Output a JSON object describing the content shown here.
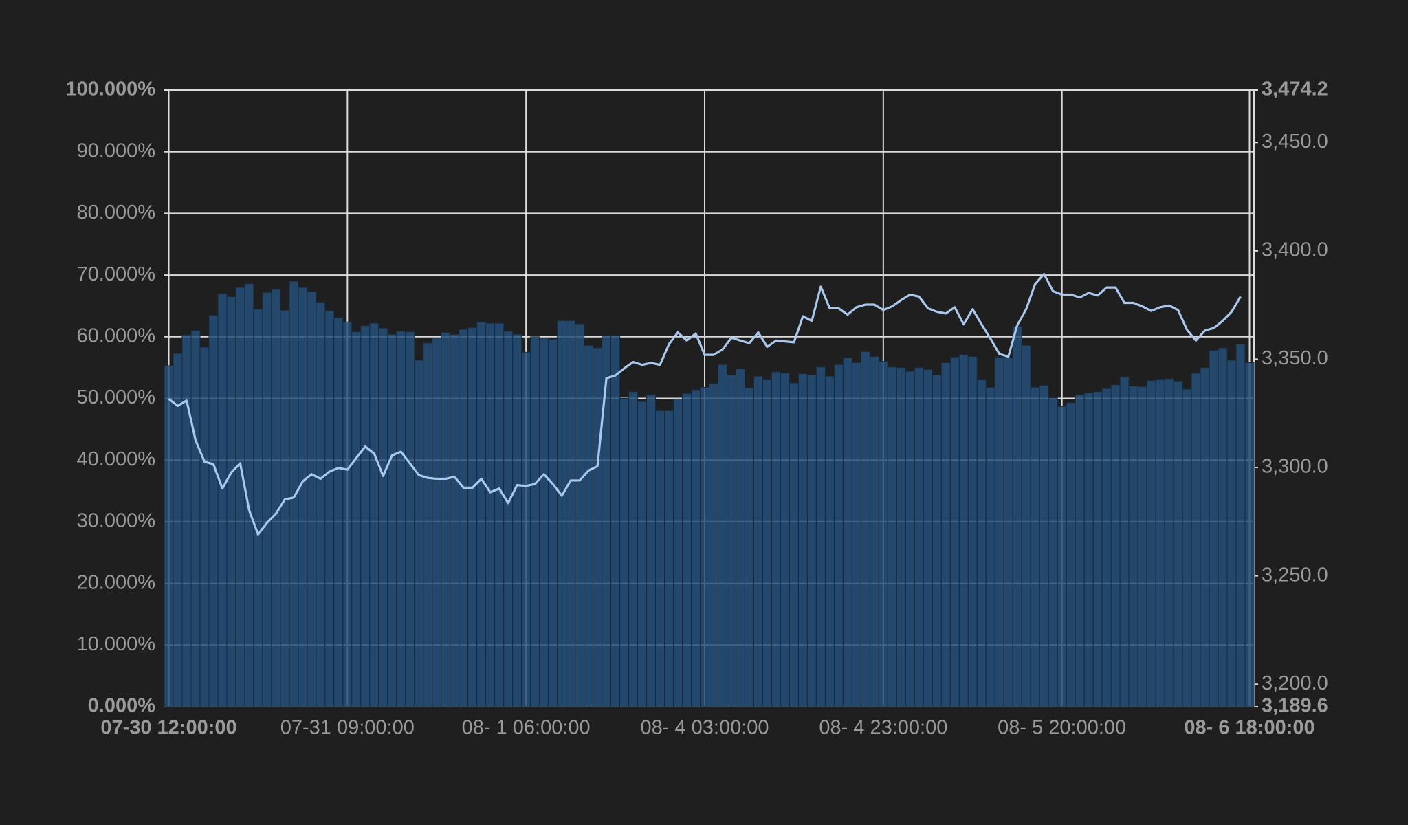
{
  "chart_data": {
    "type": "bar",
    "categories": [
      "07-30 12:00:00",
      null,
      null,
      null,
      null,
      null,
      null,
      null,
      null,
      null,
      null,
      null,
      null,
      null,
      null,
      null,
      null,
      null,
      null,
      null,
      "07-31 09:00:00",
      null,
      null,
      null,
      null,
      null,
      null,
      null,
      null,
      null,
      null,
      null,
      null,
      null,
      null,
      null,
      null,
      null,
      null,
      null,
      "08- 1 06:00:00",
      null,
      null,
      null,
      null,
      null,
      null,
      null,
      null,
      null,
      null,
      null,
      null,
      null,
      null,
      null,
      null,
      null,
      null,
      null,
      "08- 4 03:00:00",
      null,
      null,
      null,
      null,
      null,
      null,
      null,
      null,
      null,
      null,
      null,
      null,
      null,
      null,
      null,
      null,
      null,
      null,
      null,
      "08- 4 23:00:00",
      null,
      null,
      null,
      null,
      null,
      null,
      null,
      null,
      null,
      null,
      null,
      null,
      null,
      null,
      null,
      null,
      null,
      null,
      null,
      "08- 5 20:00:00",
      null,
      null,
      null,
      null,
      null,
      null,
      null,
      null,
      null,
      null,
      null,
      null,
      null,
      null,
      null,
      null,
      null,
      null,
      null,
      null,
      "08- 6 18:00:00"
    ],
    "series": [
      {
        "type": "bar",
        "color": "#26507a",
        "values": [
          55.3,
          57.3,
          60.3,
          61,
          58.3,
          63.5,
          67,
          66.5,
          68,
          68.6,
          64.5,
          67.2,
          67.7,
          64.3,
          69,
          68,
          67.3,
          65.6,
          64.2,
          63.1,
          62.4,
          60.8,
          61.8,
          62.2,
          61.4,
          60.4,
          60.9,
          60.8,
          56.2,
          59,
          59.8,
          60.7,
          60.4,
          61.2,
          61.5,
          62.4,
          62.2,
          62.2,
          60.9,
          60.4,
          57.5,
          60,
          59.8,
          59.6,
          62.6,
          62.6,
          62.1,
          58.6,
          58.2,
          60.2,
          60.2,
          50,
          51.1,
          49.5,
          50.6,
          48,
          48,
          49.9,
          50.8,
          51.4,
          51.8,
          52.4,
          55.5,
          53.8,
          54.8,
          51.7,
          53.6,
          53.1,
          54.3,
          54.1,
          52.5,
          54,
          53.8,
          55.1,
          53.6,
          55.5,
          56.6,
          55.8,
          57.6,
          56.8,
          56,
          55.1,
          55,
          54.4,
          55,
          54.7,
          53.8,
          55.8,
          56.7,
          57.1,
          56.8,
          53.1,
          51.8,
          56.7,
          56.6,
          61.7,
          58.6,
          51.8,
          52.1,
          50.1,
          48.7,
          49.3,
          50.6,
          50.9,
          51.1,
          51.6,
          52.2,
          53.5,
          52,
          51.9,
          52.9,
          53.1,
          53.2,
          52.8,
          51.5,
          54.1,
          55,
          57.8,
          58.2,
          56.2,
          58.8,
          55.8
        ]
      },
      {
        "type": "line",
        "axis": "y2",
        "color": "#aac8ee",
        "values": [
          3331.7,
          3328.4,
          3330.9,
          3312.6,
          3302.7,
          3301.5,
          3290.3,
          3297.7,
          3301.9,
          3280.3,
          3269.1,
          3274.5,
          3278.7,
          3285.3,
          3286.1,
          3293.6,
          3296.9,
          3294.8,
          3298.1,
          3299.8,
          3299.0,
          3304.4,
          3309.7,
          3306.4,
          3296.1,
          3305.6,
          3307.3,
          3301.9,
          3296.5,
          3295.2,
          3294.8,
          3294.8,
          3295.7,
          3290.7,
          3290.7,
          3294.8,
          3288.6,
          3290.3,
          3283.6,
          3291.9,
          3291.5,
          3292.4,
          3296.9,
          3292.4,
          3287.0,
          3294.0,
          3294.0,
          3298.6,
          3300.6,
          3341.2,
          3342.5,
          3345.8,
          3348.7,
          3347.4,
          3348.3,
          3347.4,
          3356.9,
          3362.4,
          3358.6,
          3361.9,
          3352.0,
          3352.0,
          3354.5,
          3359.9,
          3358.6,
          3357.4,
          3362.4,
          3355.7,
          3358.6,
          3358.2,
          3357.8,
          3369.8,
          3367.7,
          3383.5,
          3373.5,
          3373.5,
          3370.6,
          3374.0,
          3375.2,
          3375.2,
          3372.7,
          3374.4,
          3377.3,
          3379.8,
          3378.9,
          3373.5,
          3371.9,
          3371.1,
          3374.0,
          3366.1,
          3373.1,
          3366.1,
          3359.5,
          3352.4,
          3351.2,
          3365.7,
          3373.1,
          3384.7,
          3389.3,
          3381.4,
          3379.8,
          3379.8,
          3378.5,
          3380.6,
          3379.4,
          3383.1,
          3383.1,
          3376.0,
          3376.0,
          3374.4,
          3372.3,
          3374.0,
          3374.8,
          3372.7,
          3363.6,
          3358.6,
          3363.2,
          3364.4,
          3367.7,
          3371.9,
          3378.9,
          null
        ]
      }
    ],
    "ylim": [
      0,
      100
    ],
    "yticks": [
      {
        "value": 0,
        "label": "0.000%"
      },
      {
        "value": 10,
        "label": "10.000%"
      },
      {
        "value": 20,
        "label": "20.000%"
      },
      {
        "value": 30,
        "label": "30.000%"
      },
      {
        "value": 40,
        "label": "40.000%"
      },
      {
        "value": 50,
        "label": "50.000%"
      },
      {
        "value": 60,
        "label": "60.000%"
      },
      {
        "value": 70,
        "label": "70.000%"
      },
      {
        "value": 80,
        "label": "80.000%"
      },
      {
        "value": 90,
        "label": "90.000%"
      },
      {
        "value": 100,
        "label": "100.000%"
      }
    ],
    "y2lim": [
      3189.6,
      3474.2
    ],
    "y2ticks": [
      {
        "value": 3189.6,
        "label": "3,189.6"
      },
      {
        "value": 3200,
        "label": "3,200.0"
      },
      {
        "value": 3250,
        "label": "3,250.0"
      },
      {
        "value": 3300,
        "label": "3,300.0"
      },
      {
        "value": 3350,
        "label": "3,350.0"
      },
      {
        "value": 3400,
        "label": "3,400.0"
      },
      {
        "value": 3450,
        "label": "3,450.0"
      },
      {
        "value": 3474.2,
        "label": "3,474.2"
      }
    ],
    "grid": true
  }
}
